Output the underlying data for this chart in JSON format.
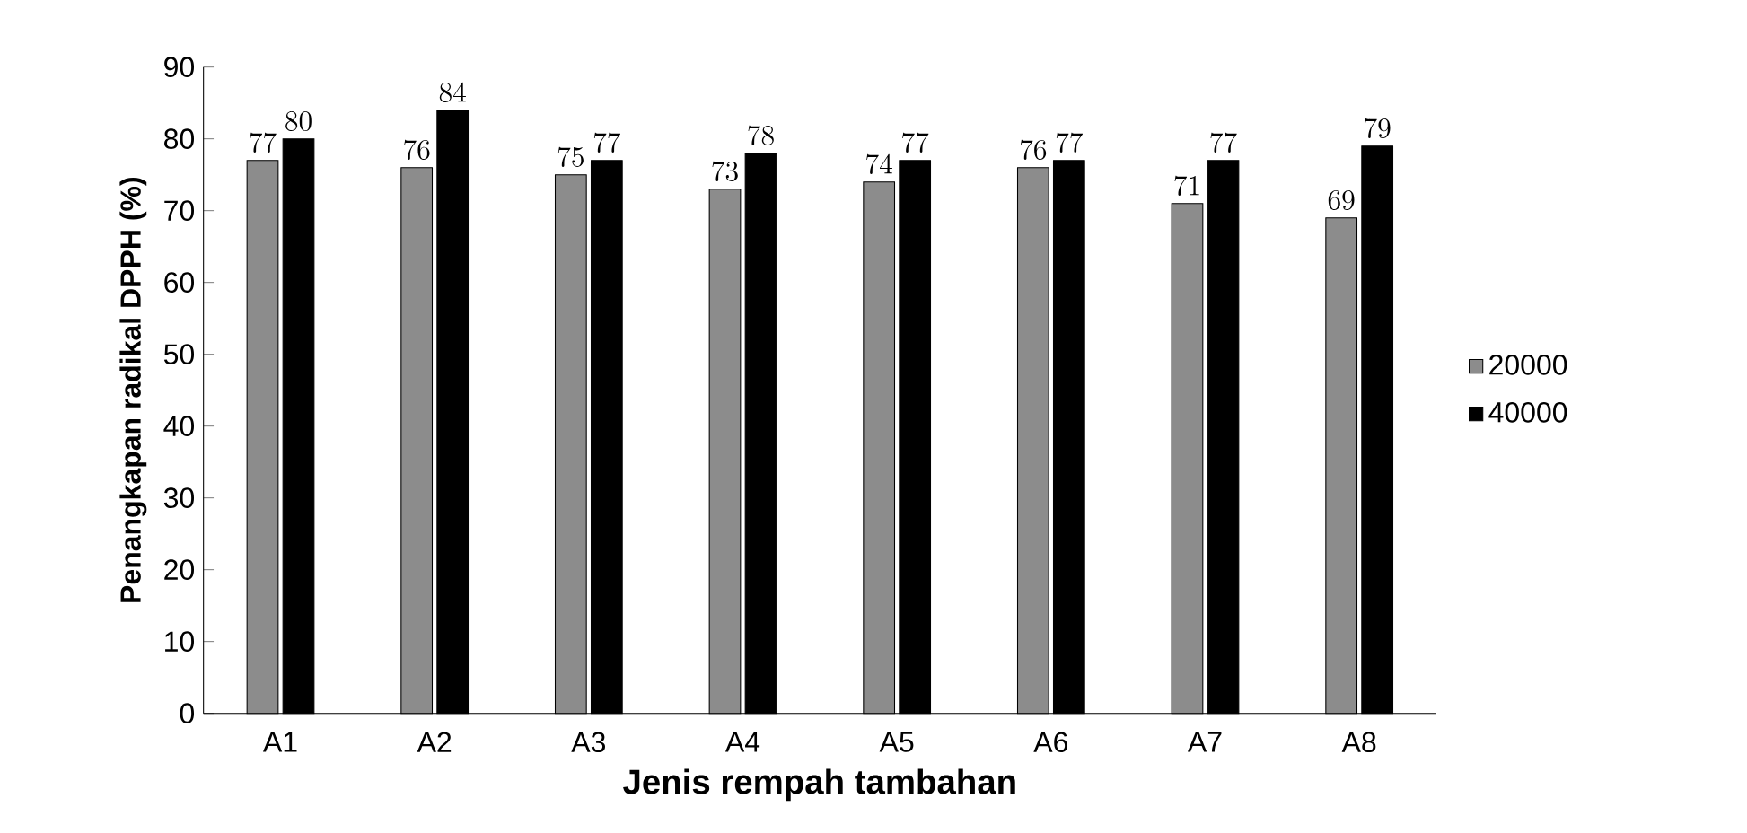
{
  "chart_data": {
    "type": "bar",
    "xlabel": "Jenis rempah tambahan",
    "ylabel": "Penangkapan radikal DPPH (%)",
    "categories": [
      "A1",
      "A2",
      "A3",
      "A4",
      "A5",
      "A6",
      "A7",
      "A8"
    ],
    "series": [
      {
        "name": "20000",
        "color": "#8c8c8c",
        "values": [
          77,
          76,
          75,
          73,
          74,
          76,
          71,
          69
        ]
      },
      {
        "name": "40000",
        "color": "#000000",
        "values": [
          80,
          84,
          77,
          78,
          77,
          77,
          77,
          79
        ]
      }
    ],
    "ylim": [
      0,
      90
    ],
    "yticks": [
      0,
      10,
      20,
      30,
      40,
      50,
      60,
      70,
      80,
      90
    ],
    "grid": false,
    "legend": "right",
    "data_labels": true
  }
}
